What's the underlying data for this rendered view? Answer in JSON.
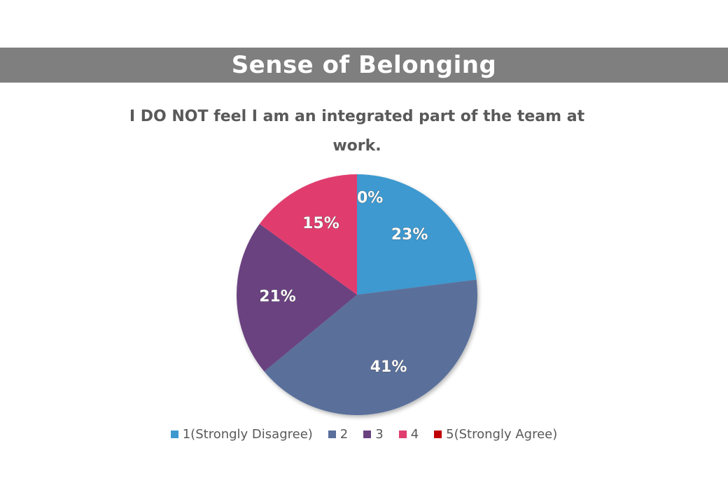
{
  "header": {
    "title": "Sense of Belonging"
  },
  "chart_data": {
    "type": "pie",
    "title": "I DO NOT feel I am an integrated part of the team at work.",
    "categories": [
      "1(Strongly Disagree)",
      "2",
      "3",
      "4",
      "5(Strongly Agree)"
    ],
    "values": [
      23,
      41,
      21,
      15,
      0
    ],
    "labels": [
      "23%",
      "41%",
      "21%",
      "15%",
      "0%"
    ],
    "colors": [
      "#3c99cf",
      "#5a6f9b",
      "#6b4280",
      "#e03d6e",
      "#c00000"
    ],
    "legend": "bottom"
  }
}
